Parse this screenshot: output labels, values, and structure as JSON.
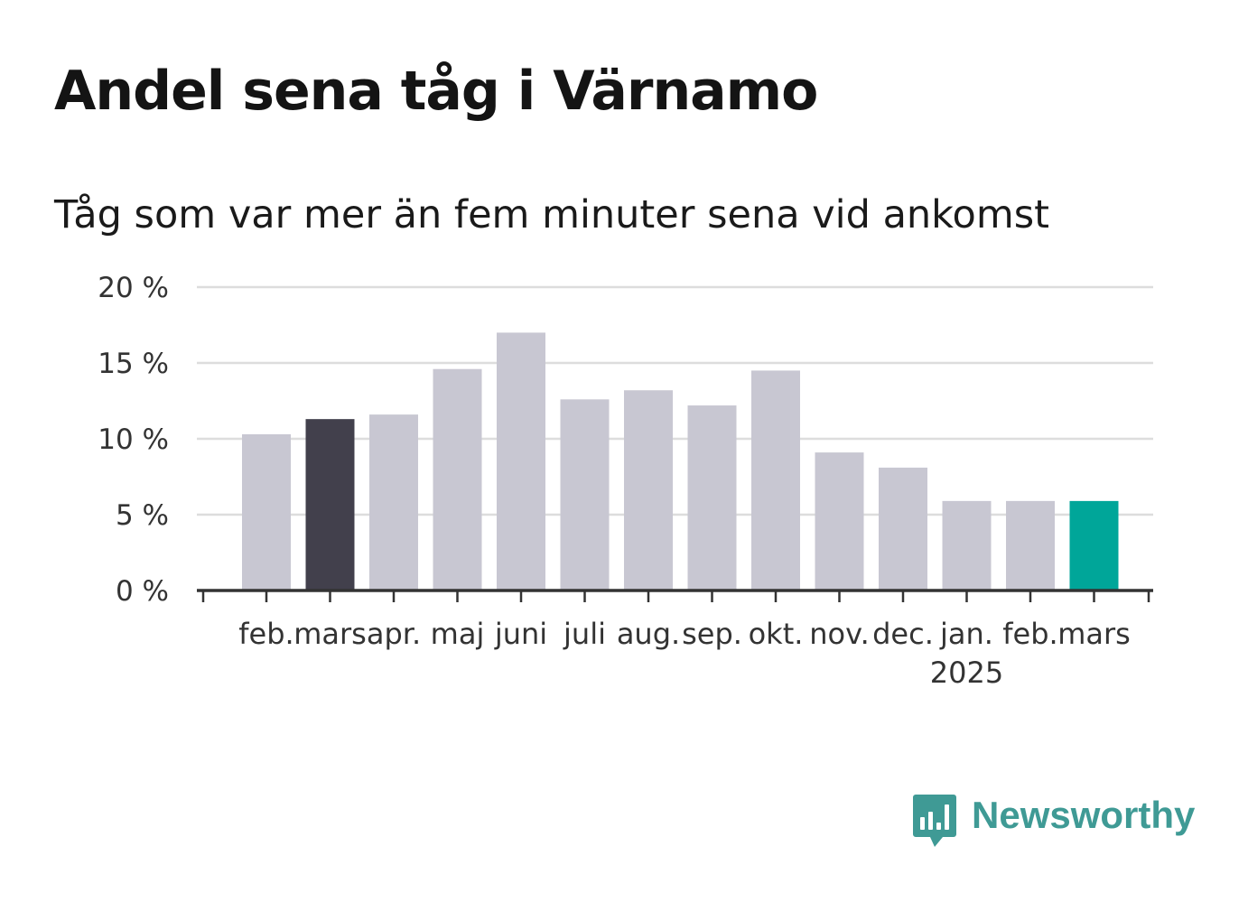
{
  "title": "Andel sena tåg i Värnamo",
  "subtitle": "Tåg som var mer än fem minuter sena vid ankomst",
  "brand": {
    "name": "Newsworthy",
    "color": "#3f9a95",
    "icon": "newsworthy-bar-chart-icon"
  },
  "colors": {
    "default_bar": "#c8c7d2",
    "highlight_previous": "#42404c",
    "highlight_current": "#00a699",
    "grid": "#dddddd",
    "axis": "#333333"
  },
  "chart_data": {
    "type": "bar",
    "categories": [
      "feb.",
      "mars",
      "apr.",
      "maj",
      "juni",
      "juli",
      "aug.",
      "sep.",
      "okt.",
      "nov.",
      "dec.",
      "jan.",
      "feb.",
      "mars"
    ],
    "year_labels": [
      {
        "category_index": 11,
        "label": "2025"
      }
    ],
    "values": [
      10.3,
      11.3,
      11.6,
      14.6,
      17.0,
      12.6,
      13.2,
      12.2,
      14.5,
      9.1,
      8.1,
      5.9,
      5.9,
      5.9
    ],
    "highlight": {
      "1": "highlight_previous",
      "13": "highlight_current"
    },
    "y_ticks": [
      0,
      5,
      10,
      15,
      20
    ],
    "y_tick_labels": [
      "0 %",
      "5 %",
      "10 %",
      "15 %",
      "20 %"
    ],
    "ylim": [
      0,
      20
    ],
    "unit": "%",
    "grid": true,
    "legend": false
  }
}
